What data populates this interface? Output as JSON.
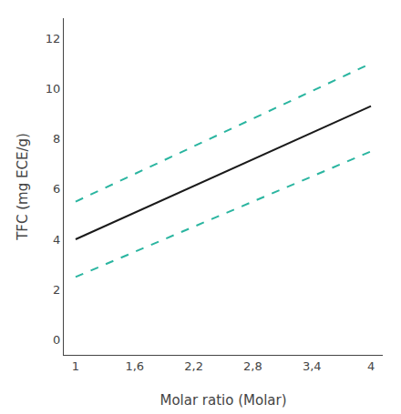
{
  "chart_data": {
    "type": "line",
    "x": [
      1,
      4
    ],
    "series": [
      {
        "color": "#1a1a1a",
        "line_style": "solid",
        "values": [
          4.0,
          9.3
        ]
      },
      {
        "color": "#2ab5a0",
        "line_style": "dashed",
        "values": [
          5.5,
          11.0
        ]
      },
      {
        "color": "#2ab5a0",
        "line_style": "dashed",
        "values": [
          2.5,
          7.5
        ]
      }
    ],
    "xlabel": "Molar ratio (Molar)",
    "ylabel": "TFC (mg ECE/g)",
    "xlim": [
      0.88,
      4.12
    ],
    "xticks": [
      1,
      {
        "value": 1.6,
        "label": "1,6"
      },
      {
        "value": 2.2,
        "label": "2,2"
      },
      {
        "value": 2.8,
        "label": "2,8"
      },
      {
        "value": 3.4,
        "label": "3,4"
      },
      4
    ],
    "ylim": [
      -0.6,
      12.8
    ],
    "yticks": [
      0,
      2,
      4,
      6,
      8,
      10,
      12
    ],
    "grid": false
  }
}
